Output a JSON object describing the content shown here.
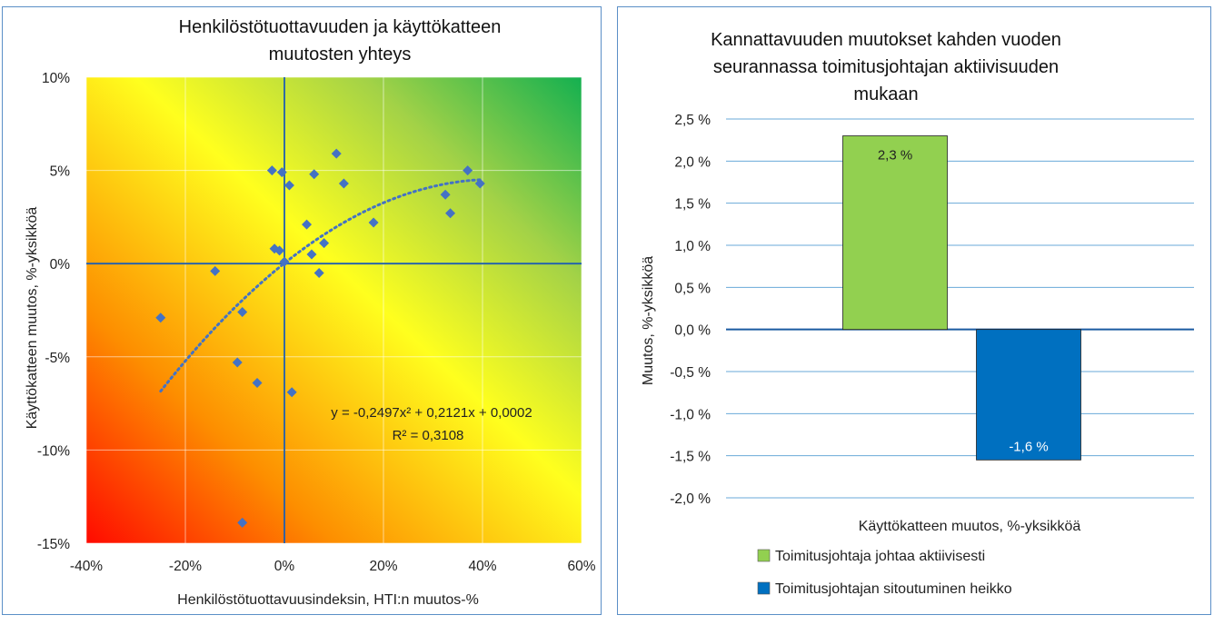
{
  "chart_data": [
    {
      "type": "scatter",
      "title": "Henkilöstötuottavuuden ja käyttökatteen muutosten yhteys",
      "title_lines": [
        "Henkilöstötuottavuuden ja käyttökatteen",
        "muutosten yhteys"
      ],
      "xlabel": "Henkilöstötuottavuusindeksin,  HTI:n muutos-%",
      "ylabel": "Käyttökatteen muutos, %-yksikköä",
      "xlim": [
        -0.4,
        0.6
      ],
      "ylim": [
        -0.15,
        0.1
      ],
      "xticks": [
        -0.4,
        -0.2,
        0,
        0.2,
        0.4,
        0.6
      ],
      "xtick_labels": [
        "-40%",
        "-20%",
        "0%",
        "20%",
        "40%",
        "60%"
      ],
      "yticks": [
        0.1,
        0.05,
        0,
        -0.05,
        -0.1,
        -0.15
      ],
      "ytick_labels": [
        "10%",
        "5%",
        "0%",
        "-5%",
        "-10%",
        "-15%"
      ],
      "grid": true,
      "background": "gradient red (bottom-left) to yellow to green (top-right)",
      "marker_color": "#4472c4",
      "points": [
        {
          "x": -0.25,
          "y": -0.029
        },
        {
          "x": -0.14,
          "y": -0.004
        },
        {
          "x": -0.085,
          "y": -0.026
        },
        {
          "x": -0.095,
          "y": -0.053
        },
        {
          "x": -0.055,
          "y": -0.064
        },
        {
          "x": -0.085,
          "y": -0.139
        },
        {
          "x": -0.025,
          "y": 0.05
        },
        {
          "x": -0.005,
          "y": 0.049
        },
        {
          "x": 0.01,
          "y": 0.042
        },
        {
          "x": -0.02,
          "y": 0.008
        },
        {
          "x": -0.01,
          "y": 0.007
        },
        {
          "x": 0.0,
          "y": 0.001
        },
        {
          "x": 0.015,
          "y": -0.069
        },
        {
          "x": 0.045,
          "y": 0.021
        },
        {
          "x": 0.055,
          "y": 0.005
        },
        {
          "x": 0.06,
          "y": 0.048
        },
        {
          "x": 0.07,
          "y": -0.005
        },
        {
          "x": 0.08,
          "y": 0.011
        },
        {
          "x": 0.105,
          "y": 0.059
        },
        {
          "x": 0.12,
          "y": 0.043
        },
        {
          "x": 0.18,
          "y": 0.022
        },
        {
          "x": 0.325,
          "y": 0.037
        },
        {
          "x": 0.335,
          "y": 0.027
        },
        {
          "x": 0.37,
          "y": 0.05
        },
        {
          "x": 0.395,
          "y": 0.043
        }
      ],
      "trendline": {
        "kind": "polynomial-2",
        "a": -0.2497,
        "b": 0.2121,
        "c": 0.0002,
        "x_range": [
          -0.25,
          0.4
        ],
        "color": "#4472c4",
        "equation": "y = -0,2497x² + 0,2121x + 0,0002",
        "r2": "R² = 0,3108"
      }
    },
    {
      "type": "bar",
      "title": "Kannattavuuden muutokset kahden vuoden seurannassa toimitusjohtajan aktiivisuuden mukaan",
      "title_lines": [
        "Kannattavuuden muutokset kahden vuoden",
        "seurannassa toimitusjohtajan aktiivisuuden",
        "mukaan"
      ],
      "xlabel": "Käyttökatteen muutos, %-yksikköä",
      "ylabel": "Muutos, %-yksikköä",
      "ylim": [
        -2.0,
        2.5
      ],
      "yticks": [
        2.5,
        2.0,
        1.5,
        1.0,
        0.5,
        0.0,
        -0.5,
        -1.0,
        -1.5,
        -2.0
      ],
      "ytick_labels": [
        "2,5 %",
        "2,0 %",
        "1,5 %",
        "1,0 %",
        "0,5 %",
        "0,0 %",
        "-0,5 %",
        "-1,0 %",
        "-1,5 %",
        "-2,0 %"
      ],
      "grid": true,
      "legend_position": "bottom",
      "series": [
        {
          "name": "Toimitusjohtaja johtaa aktiivisesti",
          "value": 2.3,
          "label": "2,3 %",
          "color": "#92d050",
          "label_color": "#222222"
        },
        {
          "name": "Toimitusjohtajan sitoutuminen heikko",
          "value": -1.55,
          "label": "-1,6 %",
          "color": "#0070c0",
          "label_color": "#ffffff"
        }
      ]
    }
  ]
}
